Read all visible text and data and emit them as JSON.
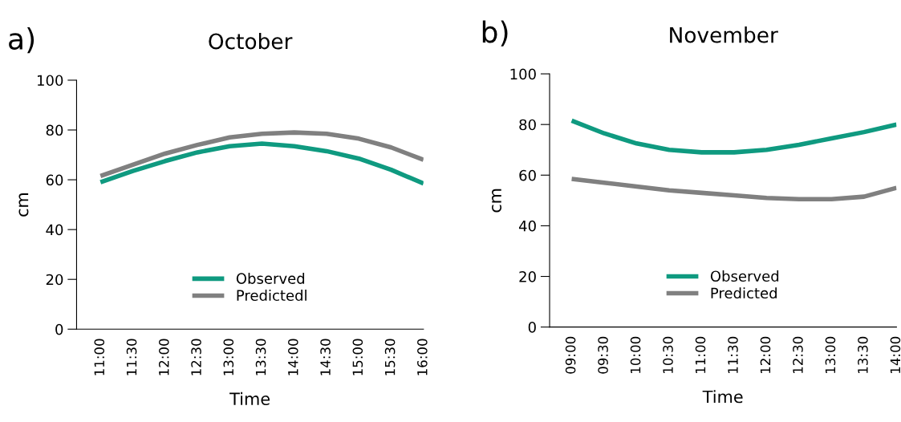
{
  "chart_data": [
    {
      "type": "line",
      "title": "October",
      "xlabel": "Time",
      "ylabel": "cm",
      "annotations": [
        "a)"
      ],
      "x": [
        11,
        11.5,
        12,
        12.5,
        13,
        13.5,
        14,
        14.5,
        15,
        15.5,
        16
      ],
      "series": [
        {
          "name": "Observed",
          "color": "#0f9a80",
          "values": [
            59,
            63.5,
            67.5,
            71,
            73.5,
            74.5,
            73.5,
            71.5,
            68.5,
            64,
            58.5
          ]
        },
        {
          "name": "Predictedl",
          "color": "#808080",
          "values": [
            61.5,
            66,
            70.5,
            74,
            77,
            78.5,
            79,
            78.5,
            76.5,
            73,
            68
          ]
        }
      ],
      "xlim": [
        10.63,
        16
      ],
      "ylim": [
        0,
        100
      ],
      "yticks": [
        0,
        20,
        40,
        60,
        80,
        100
      ],
      "xticks": [
        {
          "value": 11,
          "label": "11:00"
        },
        {
          "value": 11.5,
          "label": "11:30"
        },
        {
          "value": 12,
          "label": "12:00"
        },
        {
          "value": 12.5,
          "label": "12:30"
        },
        {
          "value": 13,
          "label": "13:00"
        },
        {
          "value": 13.5,
          "label": "13:30"
        },
        {
          "value": 14,
          "label": "14:00"
        },
        {
          "value": 14.5,
          "label": "14:30"
        },
        {
          "value": 15,
          "label": "15:00"
        },
        {
          "value": 15.5,
          "label": "15:30"
        },
        {
          "value": 16,
          "label": "16:00"
        }
      ],
      "legend": "bottom",
      "grid": false,
      "marker": "none",
      "line_style": "solid"
    },
    {
      "type": "line",
      "title": "November",
      "xlabel": "Time",
      "ylabel": "cm",
      "annotations": [
        "b)"
      ],
      "x": [
        9,
        9.5,
        10,
        10.5,
        11,
        11.5,
        12,
        12.5,
        13,
        13.5,
        14
      ],
      "series": [
        {
          "name": "Observed",
          "color": "#0f9a80",
          "values": [
            81.5,
            76.5,
            72.5,
            70,
            69,
            69,
            70,
            72,
            74.5,
            77,
            80
          ]
        },
        {
          "name": "Predicted",
          "color": "#808080",
          "values": [
            58.5,
            57,
            55.5,
            54,
            53,
            52,
            51,
            50.5,
            50.5,
            51.5,
            55
          ]
        }
      ],
      "xlim": [
        8.66,
        14
      ],
      "ylim": [
        0,
        100
      ],
      "yticks": [
        0,
        20,
        40,
        60,
        80,
        100
      ],
      "xticks": [
        {
          "value": 9,
          "label": "09:00"
        },
        {
          "value": 9.5,
          "label": "09:30"
        },
        {
          "value": 10,
          "label": "10:00"
        },
        {
          "value": 10.5,
          "label": "10:30"
        },
        {
          "value": 11,
          "label": "11:00"
        },
        {
          "value": 11.5,
          "label": "11:30"
        },
        {
          "value": 12,
          "label": "12:00"
        },
        {
          "value": 12.5,
          "label": "12:30"
        },
        {
          "value": 13,
          "label": "13:00"
        },
        {
          "value": 13.5,
          "label": "13:30"
        },
        {
          "value": 14,
          "label": "14:00"
        }
      ],
      "legend": "bottom",
      "grid": false,
      "marker": "none",
      "line_style": "solid"
    }
  ]
}
